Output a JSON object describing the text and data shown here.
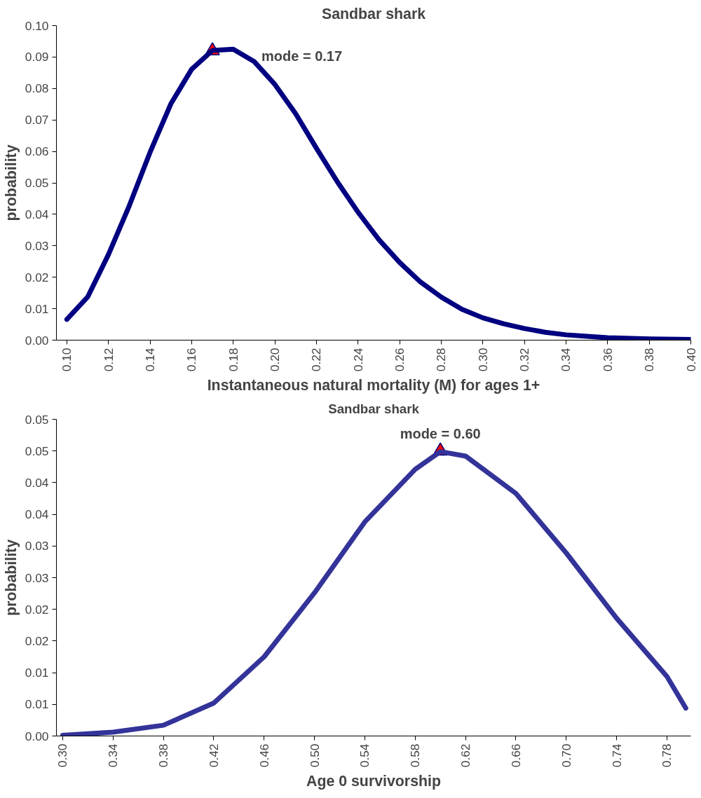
{
  "chart_data": [
    {
      "type": "line",
      "title": "Sandbar shark",
      "xlabel": "Instantaneous natural mortality (M) for ages 1+",
      "ylabel": "probability",
      "xlim": [
        0.095,
        0.4
      ],
      "ylim": [
        0,
        0.1
      ],
      "xticks": [
        {
          "value": 0.1,
          "label": "0.10"
        },
        {
          "value": 0.12,
          "label": "0.12"
        },
        {
          "value": 0.14,
          "label": "0.14"
        },
        {
          "value": 0.16,
          "label": "0.16"
        },
        {
          "value": 0.18,
          "label": "0.18"
        },
        {
          "value": 0.2,
          "label": "0.20"
        },
        {
          "value": 0.22,
          "label": "0.22"
        },
        {
          "value": 0.24,
          "label": "0.24"
        },
        {
          "value": 0.26,
          "label": "0.26"
        },
        {
          "value": 0.28,
          "label": "0.28"
        },
        {
          "value": 0.3,
          "label": "0.30"
        },
        {
          "value": 0.32,
          "label": "0.32"
        },
        {
          "value": 0.34,
          "label": "0.34"
        },
        {
          "value": 0.36,
          "label": "0.36"
        },
        {
          "value": 0.38,
          "label": "0.38"
        },
        {
          "value": 0.4,
          "label": "0.40"
        }
      ],
      "yticks": [
        {
          "value": 0,
          "label": "0.00"
        },
        {
          "value": 0.01,
          "label": "0.01"
        },
        {
          "value": 0.02,
          "label": "0.02"
        },
        {
          "value": 0.03,
          "label": "0.03"
        },
        {
          "value": 0.04,
          "label": "0.04"
        },
        {
          "value": 0.05,
          "label": "0.05"
        },
        {
          "value": 0.06,
          "label": "0.06"
        },
        {
          "value": 0.07,
          "label": "0.07"
        },
        {
          "value": 0.08,
          "label": "0.08"
        },
        {
          "value": 0.09,
          "label": "0.09"
        },
        {
          "value": 0.1,
          "label": "0.10"
        }
      ],
      "grid": false,
      "line_style": "solid",
      "x": [
        0.1,
        0.11,
        0.12,
        0.13,
        0.14,
        0.15,
        0.16,
        0.17,
        0.18,
        0.19,
        0.2,
        0.21,
        0.22,
        0.23,
        0.24,
        0.25,
        0.26,
        0.27,
        0.28,
        0.29,
        0.3,
        0.31,
        0.32,
        0.33,
        0.34,
        0.35,
        0.36,
        0.38,
        0.4
      ],
      "series": [
        {
          "color": "#000080",
          "values": [
            0.0066,
            0.0137,
            0.0272,
            0.0427,
            0.0597,
            0.0751,
            0.0861,
            0.0921,
            0.0925,
            0.0886,
            0.0813,
            0.072,
            0.061,
            0.0504,
            0.0407,
            0.032,
            0.0247,
            0.0185,
            0.0137,
            0.0098,
            0.0071,
            0.0052,
            0.0037,
            0.0025,
            0.0017,
            0.0012,
            0.0008,
            0.0004,
            0.0002
          ]
        },
        {
          "type": "scatter",
          "marker": "triangle",
          "color": "#ff0000",
          "x": [
            0.17
          ],
          "values": [
            0.092
          ]
        }
      ],
      "annotations": [
        "mode = 0.17"
      ]
    },
    {
      "type": "line",
      "title": "Sandbar shark",
      "xlabel": "Age 0 survivorship",
      "ylabel": "probability",
      "xlim": [
        0.295,
        0.799
      ],
      "ylim": [
        0,
        0.05
      ],
      "xticks": [
        {
          "value": 0.3,
          "label": "0.30"
        },
        {
          "value": 0.34,
          "label": "0.34"
        },
        {
          "value": 0.38,
          "label": "0.38"
        },
        {
          "value": 0.42,
          "label": "0.42"
        },
        {
          "value": 0.46,
          "label": "0.46"
        },
        {
          "value": 0.5,
          "label": "0.50"
        },
        {
          "value": 0.54,
          "label": "0.54"
        },
        {
          "value": 0.58,
          "label": "0.58"
        },
        {
          "value": 0.62,
          "label": "0.62"
        },
        {
          "value": 0.66,
          "label": "0.66"
        },
        {
          "value": 0.7,
          "label": "0.70"
        },
        {
          "value": 0.74,
          "label": "0.74"
        },
        {
          "value": 0.78,
          "label": "0.78"
        }
      ],
      "yticks": [
        {
          "value": 0,
          "label": "0.00"
        },
        {
          "value": 0.005,
          "label": "0.01"
        },
        {
          "value": 0.01,
          "label": "0.01"
        },
        {
          "value": 0.015,
          "label": "0.02"
        },
        {
          "value": 0.02,
          "label": "0.02"
        },
        {
          "value": 0.025,
          "label": "0.03"
        },
        {
          "value": 0.03,
          "label": "0.03"
        },
        {
          "value": 0.035,
          "label": "0.04"
        },
        {
          "value": 0.04,
          "label": "0.04"
        },
        {
          "value": 0.045,
          "label": "0.05"
        },
        {
          "value": 0.05,
          "label": "0.05"
        }
      ],
      "grid": false,
      "line_style": "solid",
      "x": [
        0.3,
        0.34,
        0.38,
        0.42,
        0.46,
        0.5,
        0.54,
        0.58,
        0.6,
        0.62,
        0.66,
        0.7,
        0.74,
        0.78,
        0.795
      ],
      "series": [
        {
          "color": "#333399",
          "values": [
            0.0001,
            0.0006,
            0.0017,
            0.0052,
            0.0125,
            0.0226,
            0.0338,
            0.0421,
            0.0449,
            0.0442,
            0.0383,
            0.0289,
            0.0186,
            0.0094,
            0.0044
          ]
        },
        {
          "type": "scatter",
          "marker": "triangle",
          "color": "#ff0000",
          "x": [
            0.6
          ],
          "values": [
            0.045
          ]
        }
      ],
      "annotations": [
        "mode = 0.60"
      ]
    }
  ]
}
